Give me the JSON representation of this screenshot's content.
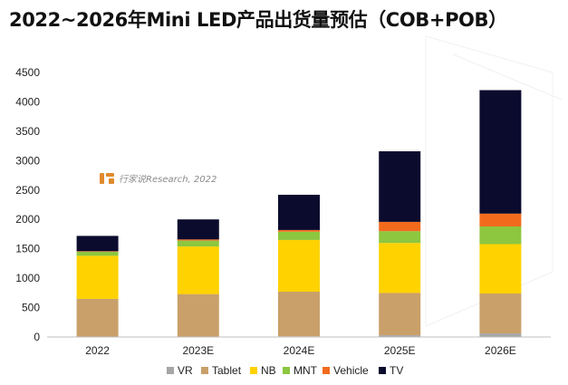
{
  "chart_data": {
    "type": "bar",
    "stacked": true,
    "title": "2022~2026年Mini LED产品出货量预估（COB+POB）",
    "xlabel": "",
    "ylabel": "",
    "ylim": [
      0,
      4500
    ],
    "yticks": [
      0,
      500,
      1000,
      1500,
      2000,
      2500,
      3000,
      3500,
      4000,
      4500
    ],
    "categories": [
      "2022",
      "2023E",
      "2024E",
      "2025E",
      "2026E"
    ],
    "series": [
      {
        "name": "VR",
        "color": "#a6a6a6",
        "values": [
          5,
          5,
          10,
          30,
          60
        ]
      },
      {
        "name": "Tablet",
        "color": "#c9a06a",
        "values": [
          645,
          725,
          760,
          720,
          680
        ]
      },
      {
        "name": "NB",
        "color": "#ffd200",
        "values": [
          730,
          810,
          880,
          850,
          840
        ]
      },
      {
        "name": "MNT",
        "color": "#8dc63f",
        "values": [
          70,
          100,
          140,
          200,
          300
        ]
      },
      {
        "name": "Vehicle",
        "color": "#f26b1d",
        "values": [
          10,
          20,
          30,
          160,
          220
        ]
      },
      {
        "name": "TV",
        "color": "#0b0b2e",
        "values": [
          260,
          340,
          600,
          1200,
          2100
        ]
      }
    ],
    "legend_position": "bottom",
    "grid": false
  },
  "watermark": {
    "text": "行家说Research, 2022",
    "icon": "brand-logo-icon",
    "color": "#e08a2c"
  },
  "colors": {
    "axis": "#bfbfbf",
    "text": "#222222"
  }
}
